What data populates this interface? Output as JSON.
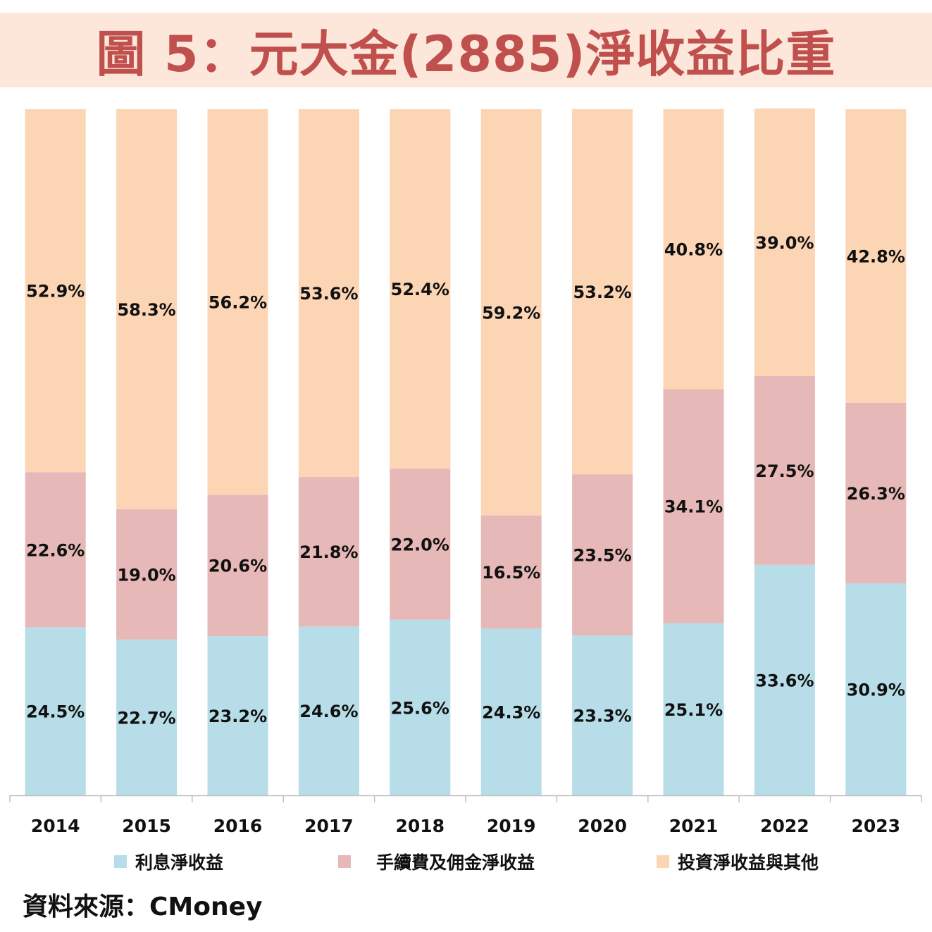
{
  "title": "圖 5：元大金(2885)淨收益比重",
  "source": "資料來源：CMoney",
  "chart_data": {
    "type": "bar",
    "stacked": true,
    "percent": true,
    "categories": [
      "2014",
      "2015",
      "2016",
      "2017",
      "2018",
      "2019",
      "2020",
      "2021",
      "2022",
      "2023"
    ],
    "series": [
      {
        "name": "利息淨收益",
        "color": "#b7dde8",
        "values": [
          24.5,
          22.7,
          23.2,
          24.6,
          25.6,
          24.3,
          23.3,
          25.1,
          33.6,
          30.9
        ],
        "labels": [
          "24.5%",
          "22.7%",
          "23.2%",
          "24.6%",
          "25.6%",
          "24.3%",
          "23.3%",
          "25.1%",
          "33.6%",
          "30.9%"
        ]
      },
      {
        "name": "手續費及佣金淨收益",
        "color": "#e6b8b7",
        "values": [
          22.6,
          19.0,
          20.6,
          21.8,
          22.0,
          16.5,
          23.5,
          34.1,
          27.5,
          26.3
        ],
        "labels": [
          "22.6%",
          "19.0%",
          "20.6%",
          "21.8%",
          "22.0%",
          "16.5%",
          "23.5%",
          "34.1%",
          "27.5%",
          "26.3%"
        ]
      },
      {
        "name": "投資淨收益與其他",
        "color": "#fcd5b5",
        "values": [
          52.9,
          58.3,
          56.2,
          53.6,
          52.4,
          59.2,
          53.2,
          40.8,
          39.0,
          42.8
        ],
        "labels": [
          "52.9%",
          "58.3%",
          "56.2%",
          "53.6%",
          "52.4%",
          "59.2%",
          "53.2%",
          "40.8%",
          "39.0%",
          "42.8%"
        ]
      }
    ],
    "ylim": [
      0,
      100
    ],
    "legend_position": "bottom",
    "grid": false
  }
}
